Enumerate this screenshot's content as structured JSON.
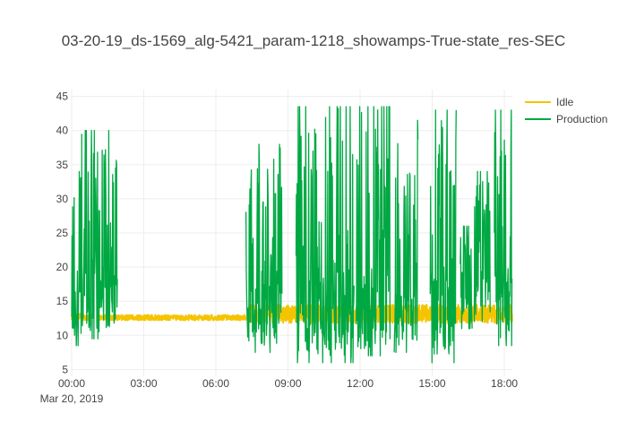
{
  "chart_data": {
    "type": "line",
    "title": "03-20-19_ds-1569_alg-5421_param-1218_showamps-True-state_res-SEC",
    "xlabel": "",
    "ylabel": "",
    "x_axis": {
      "type": "date",
      "range": [
        "2019-03-20 00:00",
        "2019-03-20 18:20"
      ],
      "tick_labels": [
        "00:00",
        "03:00",
        "06:00",
        "09:00",
        "12:00",
        "15:00",
        "18:00"
      ],
      "date_label": "Mar 20, 2019"
    },
    "y_axis": {
      "range": [
        4,
        46
      ],
      "tick_labels": [
        "5",
        "10",
        "15",
        "20",
        "25",
        "30",
        "35",
        "40",
        "45"
      ]
    },
    "grid": true,
    "legend_position": "top-right",
    "series": [
      {
        "name": "Idle",
        "color": "#f5c400",
        "segments": [
          {
            "start": "00:00",
            "end": "00:50",
            "low": 12.2,
            "high": 13.2
          },
          {
            "start": "01:10",
            "end": "07:15",
            "low": 12.2,
            "high": 13.0
          },
          {
            "start": "07:20",
            "end": "18:20",
            "low": 11.8,
            "high": 14.5
          }
        ]
      },
      {
        "name": "Production",
        "color": "#00a843",
        "segments": [
          {
            "start": "00:00",
            "end": "00:25",
            "low": 8.5,
            "high": 34.0
          },
          {
            "start": "00:25",
            "end": "01:55",
            "low": 9.5,
            "high": 40.0
          },
          {
            "start": "07:15",
            "end": "08:45",
            "low": 7.5,
            "high": 38.0
          },
          {
            "start": "09:20",
            "end": "11:45",
            "low": 6.0,
            "high": 43.5
          },
          {
            "start": "11:50",
            "end": "13:15",
            "low": 7.0,
            "high": 43.5
          },
          {
            "start": "13:25",
            "end": "14:25",
            "low": 7.5,
            "high": 41.5
          },
          {
            "start": "14:55",
            "end": "16:00",
            "low": 6.0,
            "high": 43.0
          },
          {
            "start": "16:10",
            "end": "16:40",
            "low": 11.0,
            "high": 26.0
          },
          {
            "start": "16:45",
            "end": "17:25",
            "low": 12.0,
            "high": 34.0
          },
          {
            "start": "17:35",
            "end": "18:20",
            "low": 8.5,
            "high": 43.0
          }
        ]
      }
    ]
  }
}
